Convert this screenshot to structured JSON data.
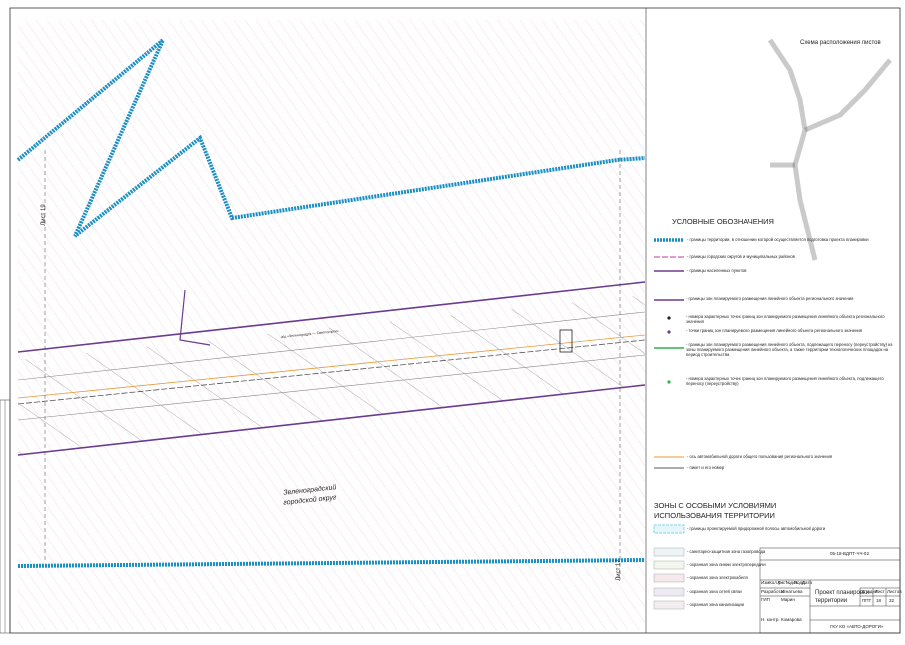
{
  "map": {
    "district": [
      "Зеленоградский",
      "городской округ"
    ],
    "sheet_left": "Лист 19",
    "sheet_right": "Лист 17",
    "road_label": "а/д «Зеленоградск — Светлогорск»"
  },
  "layout_scheme": {
    "title": "Схема расположения листов"
  },
  "legend": {
    "title": "УСЛОВНЫЕ ОБОЗНАЧЕНИЯ",
    "items": [
      "- границы территории, в отношении которой осуществляется подготовка проекта планировки",
      "- границы городских округов и муниципальных районов",
      "- границы населенных пунктов",
      "- границы зон планируемого размещения линейного объекта регионального значения",
      "- номера характерных точек границ зон планируемого размещения линейного объекта регионального значения",
      "- точки границ зон планируемого размещения линейного объекта регионального значения",
      "- границы зон планируемого размещения линейного объекта, подлежащего переносу (переустройству) из зоны планируемого размещения линейного объекта, а также территории технологических площадок на период строительства",
      "- номера характерных точек границ зон планируемого размещения линейного объекта, подлежащего переносу (переустройству)",
      "- ось автомобильной дороги общего пользования регионального значения",
      "- пикет и его номер"
    ]
  },
  "zones": {
    "title": [
      "ЗОНЫ С ОСОБЫМИ УСЛОВИЯМИ",
      "ИСПОЛЬЗОВАНИЯ ТЕРРИТОРИИ"
    ],
    "items": [
      "- границы проектируемой придорожной полосы автомобильной дороги",
      "- санитарно-защитная зона газопровода",
      "- охранная зона линии электропередачи",
      "- охранная зона электрокабеля",
      "- охранная зона сетей связи",
      "- охранная зона канализации"
    ]
  },
  "title_block": {
    "code": "05-18-ВДПТ-ЧЧ-02",
    "name": [
      "Проект планировки",
      "территории"
    ],
    "headers": [
      "Стадия",
      "Лист",
      "Листов"
    ],
    "stage": "ППТ",
    "sheet": "18",
    "sheets": "32",
    "org": "ГКУ КО «АВТО-ДОРОГИ»",
    "columns": [
      "Изм.",
      "Кол.уч",
      "Лист",
      "№док.",
      "Подп.",
      "Дата"
    ],
    "roles": [
      "Разработал",
      "ГИП",
      "Н. контр."
    ],
    "names": [
      "Игнатьева",
      "Марин",
      "Комарова"
    ]
  }
}
